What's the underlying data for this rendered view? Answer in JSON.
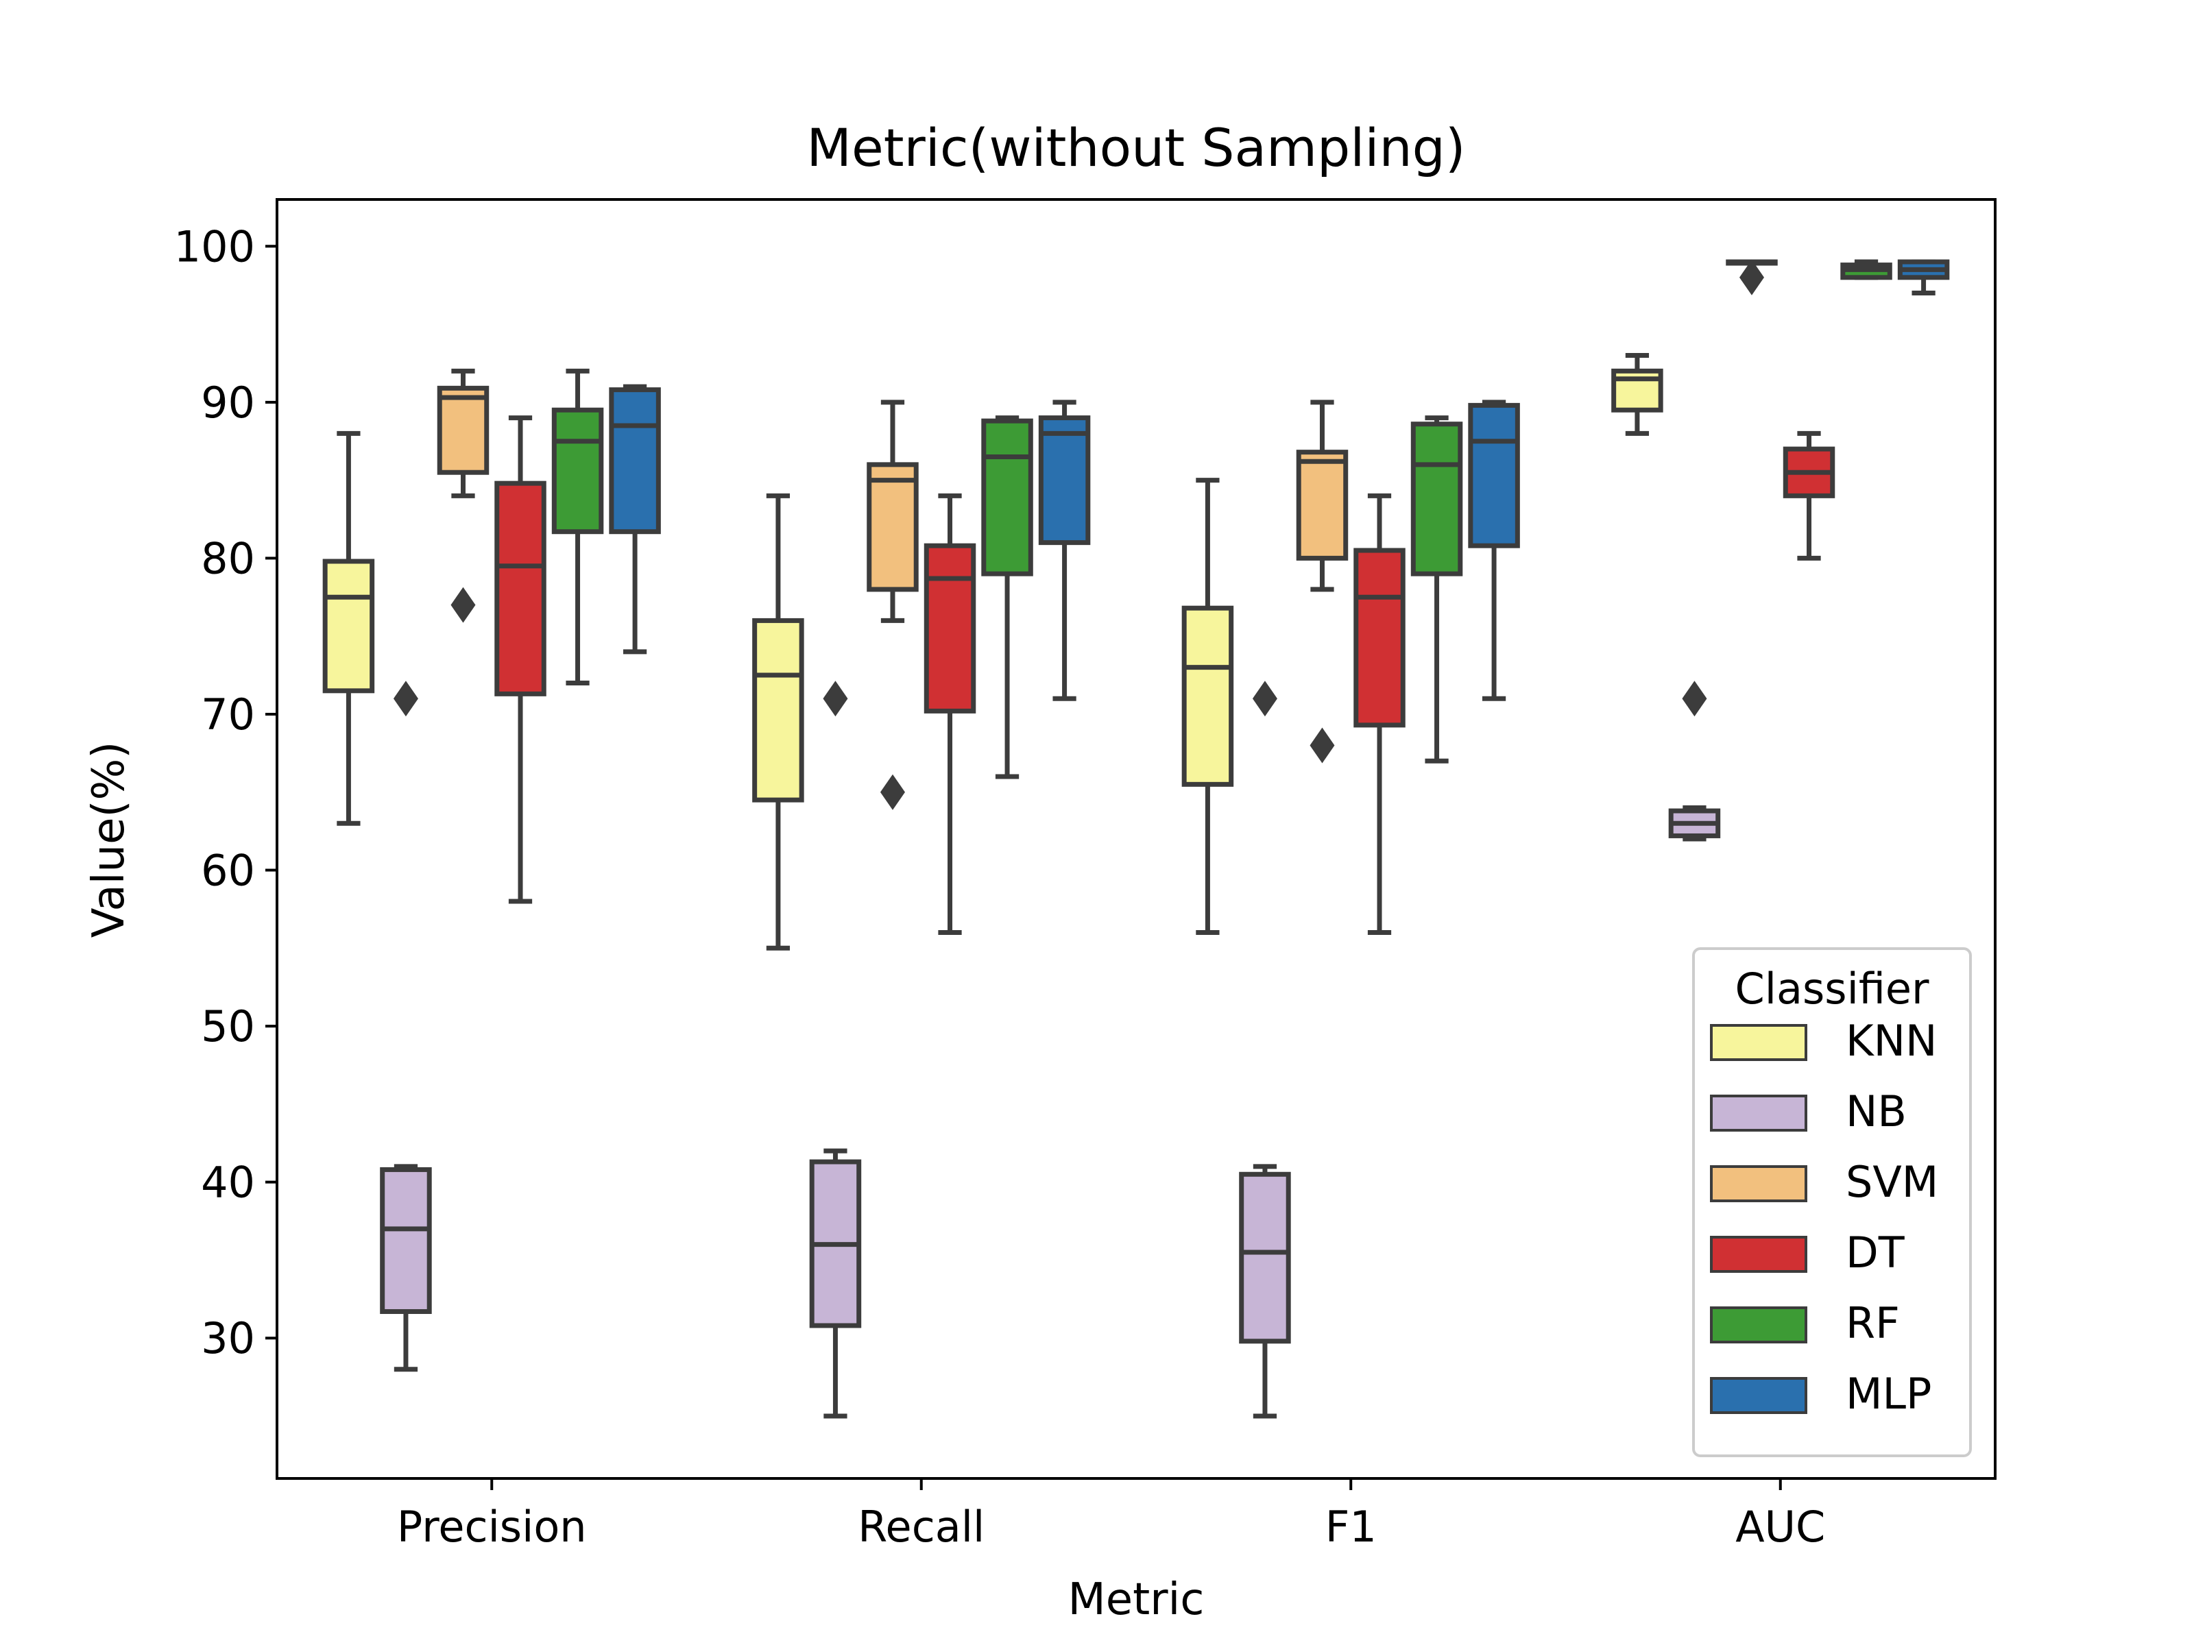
{
  "chart_data": {
    "type": "box",
    "title": "Metric(without Sampling)",
    "xlabel": "Metric",
    "ylabel": "Value(%)",
    "ylim": [
      21,
      103
    ],
    "yticks": [
      30,
      40,
      50,
      60,
      70,
      80,
      90,
      100
    ],
    "grid": false,
    "legend": {
      "title": "Classifier",
      "position": "lower-right"
    },
    "categories": [
      "Precision",
      "Recall",
      "F1",
      "AUC"
    ],
    "series": [
      {
        "name": "KNN",
        "color": "#f7f59c",
        "boxes": [
          {
            "whislo": 63,
            "q1": 71.5,
            "med": 77.5,
            "q3": 79.8,
            "whishi": 88,
            "fliers": []
          },
          {
            "whislo": 55,
            "q1": 64.5,
            "med": 72.5,
            "q3": 76,
            "whishi": 84,
            "fliers": []
          },
          {
            "whislo": 56,
            "q1": 65.5,
            "med": 73,
            "q3": 76.8,
            "whishi": 85,
            "fliers": []
          },
          {
            "whislo": 88,
            "q1": 89.5,
            "med": 91.5,
            "q3": 92,
            "whishi": 93,
            "fliers": []
          }
        ]
      },
      {
        "name": "NB",
        "color": "#c7b5d6",
        "boxes": [
          {
            "whislo": 28,
            "q1": 31.7,
            "med": 37,
            "q3": 40.8,
            "whishi": 41,
            "fliers": [
              71
            ]
          },
          {
            "whislo": 25,
            "q1": 30.8,
            "med": 36,
            "q3": 41.3,
            "whishi": 42,
            "fliers": [
              71
            ]
          },
          {
            "whislo": 25,
            "q1": 29.8,
            "med": 35.5,
            "q3": 40.5,
            "whishi": 41,
            "fliers": [
              71
            ]
          },
          {
            "whislo": 62,
            "q1": 62.2,
            "med": 63,
            "q3": 63.8,
            "whishi": 64,
            "fliers": [
              71
            ]
          }
        ]
      },
      {
        "name": "SVM",
        "color": "#f2c07e",
        "boxes": [
          {
            "whislo": 84,
            "q1": 85.5,
            "med": 90.3,
            "q3": 90.9,
            "whishi": 92,
            "fliers": [
              77
            ]
          },
          {
            "whislo": 76,
            "q1": 78,
            "med": 85,
            "q3": 86,
            "whishi": 90,
            "fliers": [
              65
            ]
          },
          {
            "whislo": 78,
            "q1": 80,
            "med": 86.2,
            "q3": 86.8,
            "whishi": 90,
            "fliers": [
              68
            ]
          },
          {
            "whislo": 99,
            "q1": 99,
            "med": 99,
            "q3": 99,
            "whishi": 99,
            "fliers": [
              98
            ]
          }
        ]
      },
      {
        "name": "DT",
        "color": "#d03033",
        "boxes": [
          {
            "whislo": 58,
            "q1": 71.3,
            "med": 79.5,
            "q3": 84.8,
            "whishi": 89,
            "fliers": []
          },
          {
            "whislo": 56,
            "q1": 70.2,
            "med": 78.7,
            "q3": 80.8,
            "whishi": 84,
            "fliers": []
          },
          {
            "whislo": 56,
            "q1": 69.3,
            "med": 77.5,
            "q3": 80.5,
            "whishi": 84,
            "fliers": []
          },
          {
            "whislo": 80,
            "q1": 84,
            "med": 85.5,
            "q3": 87,
            "whishi": 88,
            "fliers": []
          }
        ]
      },
      {
        "name": "RF",
        "color": "#3d9b35",
        "boxes": [
          {
            "whislo": 72,
            "q1": 81.7,
            "med": 87.5,
            "q3": 89.5,
            "whishi": 92,
            "fliers": []
          },
          {
            "whislo": 66,
            "q1": 79,
            "med": 86.5,
            "q3": 88.8,
            "whishi": 89,
            "fliers": []
          },
          {
            "whislo": 67,
            "q1": 79,
            "med": 86,
            "q3": 88.6,
            "whishi": 89,
            "fliers": []
          },
          {
            "whislo": 98,
            "q1": 98,
            "med": 98.5,
            "q3": 98.8,
            "whishi": 99,
            "fliers": []
          }
        ]
      },
      {
        "name": "MLP",
        "color": "#2a70ae",
        "boxes": [
          {
            "whislo": 74,
            "q1": 81.7,
            "med": 88.5,
            "q3": 90.8,
            "whishi": 91,
            "fliers": []
          },
          {
            "whislo": 71,
            "q1": 81,
            "med": 88,
            "q3": 89,
            "whishi": 90,
            "fliers": []
          },
          {
            "whislo": 71,
            "q1": 80.8,
            "med": 87.5,
            "q3": 89.8,
            "whishi": 90,
            "fliers": []
          },
          {
            "whislo": 97,
            "q1": 98,
            "med": 98.5,
            "q3": 99,
            "whishi": 99,
            "fliers": []
          }
        ]
      }
    ]
  }
}
